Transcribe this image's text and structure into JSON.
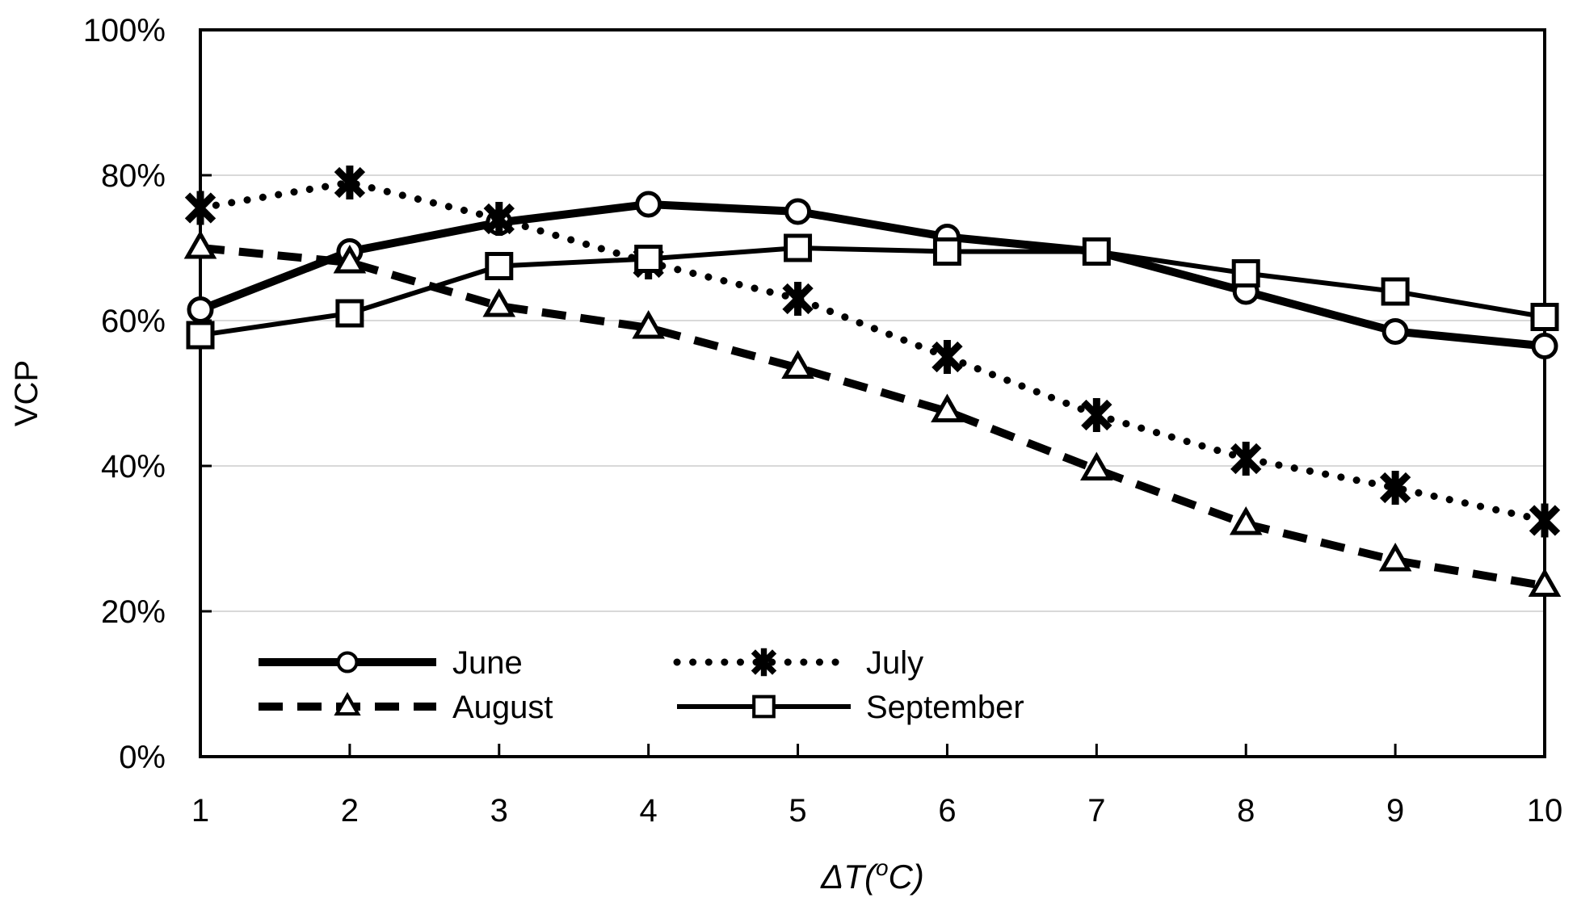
{
  "chart_data": {
    "type": "line",
    "title": "",
    "xlabel": "ΔT(°C)",
    "xlabel_parts": {
      "pre": "ΔT(",
      "sup": "o",
      "post": "C)"
    },
    "ylabel": "VCP",
    "x": [
      1,
      2,
      3,
      4,
      5,
      6,
      7,
      8,
      9,
      10
    ],
    "x_tick_labels": [
      "1",
      "2",
      "3",
      "4",
      "5",
      "6",
      "7",
      "8",
      "9",
      "10"
    ],
    "y_ticks": [
      0,
      20,
      40,
      60,
      80,
      100
    ],
    "y_tick_labels": [
      "0%",
      "20%",
      "40%",
      "60%",
      "80%",
      "100%"
    ],
    "y_gridlines": [
      20,
      40,
      60,
      80
    ],
    "ylim": [
      0,
      100
    ],
    "xlim": [
      1,
      10
    ],
    "grid": "horizontal",
    "legend_position": "inside-bottom-left",
    "series": [
      {
        "name": "June",
        "marker": "circle",
        "line": "solid-thick",
        "values": [
          61.5,
          69.5,
          73.5,
          76,
          75,
          71.5,
          69.5,
          64,
          58.5,
          56.5
        ]
      },
      {
        "name": "July",
        "marker": "asterisk",
        "line": "dotted",
        "values": [
          75.5,
          79,
          74,
          68,
          63,
          55,
          47,
          41,
          37,
          32.5
        ]
      },
      {
        "name": "August",
        "marker": "triangle",
        "line": "dashed",
        "values": [
          70,
          68,
          62,
          59,
          53.5,
          47.5,
          39.5,
          32,
          27,
          23.5
        ]
      },
      {
        "name": "September",
        "marker": "square",
        "line": "solid-thin",
        "values": [
          58,
          61,
          67.5,
          68.5,
          70,
          69.5,
          69.5,
          66.5,
          64,
          60.5
        ]
      }
    ],
    "colors": {
      "line": "#000000",
      "grid": "#d9d9d9",
      "axis": "#000000",
      "background": "#ffffff",
      "marker_fill": "#ffffff"
    }
  }
}
